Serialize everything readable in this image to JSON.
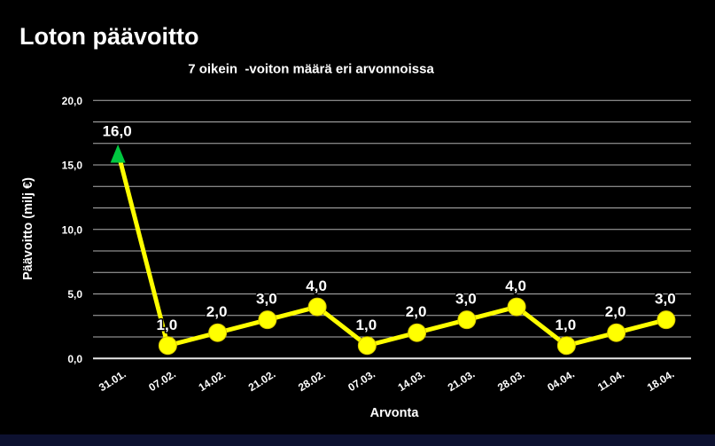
{
  "page": {
    "background": "#000000"
  },
  "header": {
    "title": "Loton päävoitto",
    "subtitle": "7 oikein  -voiton määrä eri arvonnoissa"
  },
  "chart_data": {
    "type": "line",
    "title": "7 oikein  -voiton määrä eri arvonnoissa",
    "categories": [
      "31.01.",
      "07.02.",
      "14.02.",
      "21.02.",
      "28.02.",
      "07.03.",
      "14.03.",
      "21.03.",
      "28.03.",
      "04.04.",
      "11.04.",
      "18.04."
    ],
    "values": [
      16,
      1,
      2,
      3,
      4,
      1,
      2,
      3,
      4,
      1,
      2,
      3
    ],
    "point_labels": [
      "16,0",
      "1,0",
      "2,0",
      "3,0",
      "4,0",
      "1,0",
      "2,0",
      "3,0",
      "4,0",
      "1,0",
      "2,0",
      "3,0"
    ],
    "xlabel": "Arvonta",
    "ylabel": "Päävoitto (milj €)",
    "ylim": [
      0,
      20
    ],
    "y_ticks": [
      {
        "value": 20,
        "label": "20,0"
      },
      {
        "value": 15,
        "label": "15,0"
      },
      {
        "value": 10,
        "label": "10,0"
      },
      {
        "value": 5,
        "label": "5,0"
      },
      {
        "value": 0,
        "label": "0,0"
      }
    ],
    "grid": true,
    "grid_subdivisions_per_major": 3,
    "legend_position": "none",
    "line_color": "#ffff00",
    "marker_color": "#ffff00",
    "marker_edge_color": "#d8c800",
    "grid_color": "#b0b0b0",
    "axis_line_color": "#e8e8e8",
    "label_color": "#ffffff",
    "arrow_annotation": {
      "index": 0,
      "direction": "up",
      "color": "#00c840"
    }
  },
  "footer": {
    "bar_color": "#0d1130"
  }
}
